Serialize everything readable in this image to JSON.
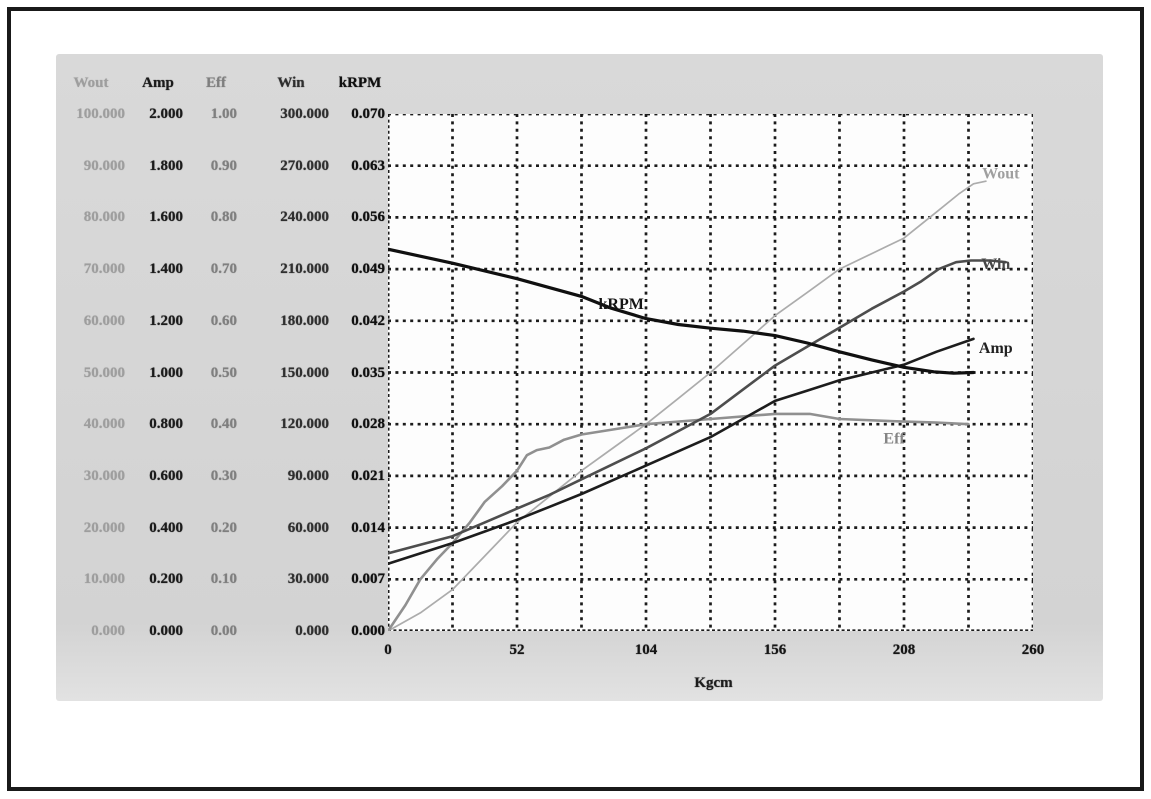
{
  "panel": {
    "background": "#d6d6d6",
    "plot_background": "#fdfdfd",
    "grid_color": "#1b1b1b"
  },
  "table": {
    "headers": [
      {
        "label": "Wout",
        "color": "#9e9e9e"
      },
      {
        "label": "Amp",
        "color": "#1b1b1b"
      },
      {
        "label": "Eff",
        "color": "#7f7f7f"
      },
      {
        "label": "Win",
        "color": "#2f2f2f"
      },
      {
        "label": "kRPM",
        "color": "#101010"
      }
    ],
    "rows": [
      [
        "100.000",
        "2.000",
        "1.00",
        "300.000",
        "0.070"
      ],
      [
        "90.000",
        "1.800",
        "0.90",
        "270.000",
        "0.063"
      ],
      [
        "80.000",
        "1.600",
        "0.80",
        "240.000",
        "0.056"
      ],
      [
        "70.000",
        "1.400",
        "0.70",
        "210.000",
        "0.049"
      ],
      [
        "60.000",
        "1.200",
        "0.60",
        "180.000",
        "0.042"
      ],
      [
        "50.000",
        "1.000",
        "0.50",
        "150.000",
        "0.035"
      ],
      [
        "40.000",
        "0.800",
        "0.40",
        "120.000",
        "0.028"
      ],
      [
        "30.000",
        "0.600",
        "0.30",
        "90.000",
        "0.021"
      ],
      [
        "20.000",
        "0.400",
        "0.20",
        "60.000",
        "0.014"
      ],
      [
        "10.000",
        "0.200",
        "0.10",
        "30.000",
        "0.007"
      ],
      [
        "0.000",
        "0.000",
        "0.00",
        "0.000",
        "0.000"
      ]
    ]
  },
  "chart_data": {
    "type": "line",
    "xlabel": "Kgcm",
    "xlim": [
      0,
      260
    ],
    "x_ticks": [
      "0",
      "52",
      "104",
      "156",
      "208",
      "260"
    ],
    "grid": {
      "x_divisions": 10,
      "y_divisions": 10,
      "style": "dotted",
      "on": true
    },
    "legend_position": "inline-labels",
    "axes": [
      {
        "name": "Wout",
        "range": [
          0,
          100
        ]
      },
      {
        "name": "Amp",
        "range": [
          0,
          2
        ]
      },
      {
        "name": "Eff",
        "range": [
          0,
          1
        ]
      },
      {
        "name": "Win",
        "range": [
          0,
          300
        ]
      },
      {
        "name": "kRPM",
        "range": [
          0,
          0.07
        ]
      }
    ],
    "series": [
      {
        "name": "Wout",
        "color": "#acacac",
        "label_color": "#9f9f9f",
        "stroke_width": 1.7,
        "y_range": [
          0,
          100
        ],
        "label_pos": [
          247,
          88.5
        ],
        "points": [
          [
            0,
            0
          ],
          [
            13,
            3.5
          ],
          [
            26,
            8
          ],
          [
            39,
            14.5
          ],
          [
            52,
            21
          ],
          [
            65,
            26
          ],
          [
            78,
            31
          ],
          [
            91,
            35.5
          ],
          [
            104,
            40
          ],
          [
            117,
            45
          ],
          [
            130,
            50
          ],
          [
            143,
            55.5
          ],
          [
            156,
            61
          ],
          [
            169,
            65.5
          ],
          [
            182,
            70
          ],
          [
            195,
            73
          ],
          [
            208,
            76
          ],
          [
            221,
            81
          ],
          [
            230,
            84.5
          ],
          [
            236,
            86.5
          ],
          [
            241,
            87
          ]
        ]
      },
      {
        "name": "Eff",
        "color": "#909090",
        "label_color": "#858585",
        "stroke_width": 2.6,
        "y_range": [
          0,
          1
        ],
        "label_pos": [
          204,
          0.372
        ],
        "points": [
          [
            0,
            0
          ],
          [
            7,
            0.05
          ],
          [
            13,
            0.1
          ],
          [
            20,
            0.14
          ],
          [
            26,
            0.17
          ],
          [
            33,
            0.21
          ],
          [
            39,
            0.25
          ],
          [
            46,
            0.28
          ],
          [
            52,
            0.31
          ],
          [
            56,
            0.34
          ],
          [
            60,
            0.35
          ],
          [
            65,
            0.355
          ],
          [
            71,
            0.37
          ],
          [
            78,
            0.38
          ],
          [
            91,
            0.39
          ],
          [
            104,
            0.4
          ],
          [
            130,
            0.41
          ],
          [
            156,
            0.42
          ],
          [
            170,
            0.42
          ],
          [
            182,
            0.41
          ],
          [
            208,
            0.405
          ],
          [
            221,
            0.403
          ],
          [
            234,
            0.4
          ]
        ]
      },
      {
        "name": "Win",
        "color": "#4d4d4d",
        "label_color": "#474747",
        "stroke_width": 2.6,
        "y_range": [
          0,
          300
        ],
        "label_pos": [
          245,
          213
        ],
        "points": [
          [
            0,
            45
          ],
          [
            13,
            50
          ],
          [
            26,
            55
          ],
          [
            39,
            63
          ],
          [
            52,
            71
          ],
          [
            65,
            79
          ],
          [
            78,
            88
          ],
          [
            91,
            97
          ],
          [
            104,
            106
          ],
          [
            117,
            116
          ],
          [
            130,
            126
          ],
          [
            143,
            140
          ],
          [
            156,
            154
          ],
          [
            169,
            165
          ],
          [
            182,
            176
          ],
          [
            195,
            187
          ],
          [
            208,
            197
          ],
          [
            215,
            203
          ],
          [
            222,
            210
          ],
          [
            229,
            214
          ],
          [
            235,
            215
          ],
          [
            243,
            215
          ],
          [
            249,
            214
          ]
        ]
      },
      {
        "name": "Amp",
        "color": "#1d1d1d",
        "label_color": "#222222",
        "stroke_width": 2.6,
        "y_range": [
          0,
          2
        ],
        "label_pos": [
          245,
          1.095
        ],
        "points": [
          [
            0,
            0.26
          ],
          [
            13,
            0.3
          ],
          [
            26,
            0.34
          ],
          [
            39,
            0.385
          ],
          [
            52,
            0.43
          ],
          [
            65,
            0.48
          ],
          [
            78,
            0.53
          ],
          [
            91,
            0.585
          ],
          [
            104,
            0.64
          ],
          [
            117,
            0.695
          ],
          [
            130,
            0.75
          ],
          [
            143,
            0.82
          ],
          [
            156,
            0.89
          ],
          [
            169,
            0.93
          ],
          [
            182,
            0.97
          ],
          [
            195,
            1.0
          ],
          [
            208,
            1.03
          ],
          [
            221,
            1.08
          ],
          [
            236,
            1.13
          ]
        ]
      },
      {
        "name": "kRPM",
        "color": "#101010",
        "label_color": "#141414",
        "stroke_width": 3.2,
        "y_range": [
          0,
          0.07
        ],
        "label_pos": [
          94,
          0.0443
        ],
        "points": [
          [
            0,
            0.0517
          ],
          [
            26,
            0.0498
          ],
          [
            52,
            0.0477
          ],
          [
            78,
            0.0453
          ],
          [
            90,
            0.0437
          ],
          [
            104,
            0.0423
          ],
          [
            117,
            0.0415
          ],
          [
            130,
            0.041
          ],
          [
            143,
            0.0406
          ],
          [
            156,
            0.04
          ],
          [
            169,
            0.039
          ],
          [
            182,
            0.0378
          ],
          [
            195,
            0.0367
          ],
          [
            208,
            0.0357
          ],
          [
            220,
            0.0351
          ],
          [
            228,
            0.0349
          ],
          [
            236,
            0.035
          ]
        ]
      }
    ]
  }
}
